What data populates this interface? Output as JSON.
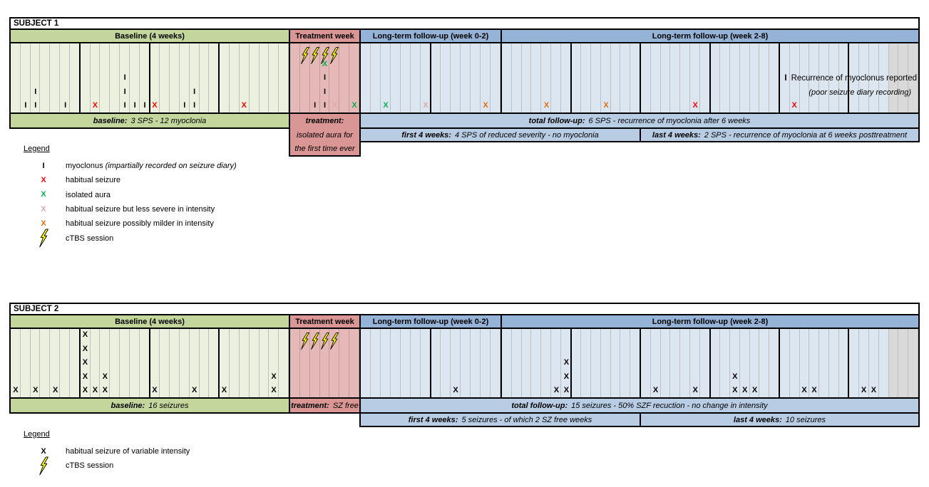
{
  "colors": {
    "baseline_header": "#C3D69B",
    "baseline_bg": "#EBF1DE",
    "treatment_header": "#D99694",
    "treatment_bg": "#E5B9B7",
    "followup_header": "#95B3D7",
    "followup_bg": "#DCE6F1",
    "summary_followup": "#B8CCE4",
    "gray_bg": "#D9D9D9",
    "mark_black": "#000000",
    "mark_red": "#FF0000",
    "mark_green": "#00B050",
    "mark_pink": "#E0A8A6",
    "mark_orange": "#E36C09",
    "bolt_fill": "#FFFF00"
  },
  "grid": {
    "week_length": 7,
    "sections": [
      {
        "key": "baseline",
        "days": 28
      },
      {
        "key": "treatment",
        "days": 7
      },
      {
        "key": "ltf1",
        "days": 14
      },
      {
        "key": "ltf2",
        "days": 42,
        "gray_last_days": 3
      }
    ]
  },
  "subjects": [
    {
      "title": "SUBJECT 1",
      "headers": {
        "baseline": "Baseline (4 weeks)",
        "treatment": "Treatment week",
        "ltf1": "Long-term follow-up (week 0-2)",
        "ltf2": "Long-term follow-up (week 2-8)"
      },
      "bolts": [
        2,
        3,
        4,
        5
      ],
      "marks": [
        {
          "sec": "baseline",
          "day": 2,
          "level": 0,
          "sym": "I",
          "color": "black"
        },
        {
          "sec": "baseline",
          "day": 3,
          "level": 0,
          "sym": "I",
          "color": "black"
        },
        {
          "sec": "baseline",
          "day": 3,
          "level": 1,
          "sym": "I",
          "color": "black"
        },
        {
          "sec": "baseline",
          "day": 6,
          "level": 0,
          "sym": "I",
          "color": "black"
        },
        {
          "sec": "baseline",
          "day": 9,
          "level": 0,
          "sym": "X",
          "color": "red"
        },
        {
          "sec": "baseline",
          "day": 12,
          "level": 0,
          "sym": "I",
          "color": "black"
        },
        {
          "sec": "baseline",
          "day": 12,
          "level": 1,
          "sym": "I",
          "color": "black"
        },
        {
          "sec": "baseline",
          "day": 12,
          "level": 2,
          "sym": "I",
          "color": "black"
        },
        {
          "sec": "baseline",
          "day": 13,
          "level": 0,
          "sym": "I",
          "color": "black"
        },
        {
          "sec": "baseline",
          "day": 14,
          "level": 0,
          "sym": "I",
          "color": "black"
        },
        {
          "sec": "baseline",
          "day": 15,
          "level": 0,
          "sym": "X",
          "color": "red"
        },
        {
          "sec": "baseline",
          "day": 18,
          "level": 0,
          "sym": "I",
          "color": "black"
        },
        {
          "sec": "baseline",
          "day": 19,
          "level": 0,
          "sym": "I",
          "color": "black"
        },
        {
          "sec": "baseline",
          "day": 19,
          "level": 1,
          "sym": "I",
          "color": "black"
        },
        {
          "sec": "baseline",
          "day": 24,
          "level": 0,
          "sym": "X",
          "color": "red"
        },
        {
          "sec": "treatment",
          "day": 3,
          "level": 0,
          "sym": "I",
          "color": "black"
        },
        {
          "sec": "treatment",
          "day": 4,
          "level": 0,
          "sym": "I",
          "color": "black"
        },
        {
          "sec": "treatment",
          "day": 4,
          "level": 1,
          "sym": "I",
          "color": "black"
        },
        {
          "sec": "treatment",
          "day": 4,
          "level": 2,
          "sym": "I",
          "color": "black"
        },
        {
          "sec": "treatment",
          "day": 4,
          "level": 3,
          "sym": "X",
          "color": "green"
        },
        {
          "sec": "treatment",
          "day": 5,
          "level": 0,
          "sym": "X",
          "color": "pink"
        },
        {
          "sec": "treatment",
          "day": 7,
          "level": 0,
          "sym": "X",
          "color": "green"
        },
        {
          "sec": "ltf1",
          "day": 3,
          "level": 0,
          "sym": "X",
          "color": "green"
        },
        {
          "sec": "ltf1",
          "day": 7,
          "level": 0,
          "sym": "X",
          "color": "pink"
        },
        {
          "sec": "ltf1",
          "day": 13,
          "level": 0,
          "sym": "X",
          "color": "orange"
        },
        {
          "sec": "ltf2",
          "day": 5,
          "level": 0,
          "sym": "X",
          "color": "orange"
        },
        {
          "sec": "ltf2",
          "day": 11,
          "level": 0,
          "sym": "X",
          "color": "orange"
        },
        {
          "sec": "ltf2",
          "day": 20,
          "level": 0,
          "sym": "X",
          "color": "red"
        },
        {
          "sec": "ltf2",
          "day": 30,
          "level": 0,
          "sym": "X",
          "color": "red"
        }
      ],
      "annotation": {
        "mark": "I",
        "line1": "Recurrence of myoclonus reported",
        "line2": "(poor seizure diary recording)"
      },
      "summary": {
        "baseline_label": "baseline:",
        "baseline_value": "3 SPS - 12 myoclonia",
        "treatment_label": "treatment:",
        "treatment_line2": "isolated aura for",
        "treatment_line3": "the first time ever",
        "total_label": "total follow-up:",
        "total_value": "6 SPS - recurrence of myoclonia after 6 weeks",
        "first4_label": "first 4 weeks:",
        "first4_value": "4 SPS of reduced severity - no myoclonia",
        "last4_label": "last 4 weeks:",
        "last4_value": "2 SPS - recurrence of myoclonia at 6 weeks posttreatment"
      },
      "legend": {
        "title": "Legend",
        "items": [
          {
            "sym": "I",
            "color": "black",
            "text": "myoclonus",
            "note": "(impartially recorded on seizure diary)"
          },
          {
            "sym": "X",
            "color": "red",
            "text": "habitual seizure"
          },
          {
            "sym": "X",
            "color": "green",
            "text": "isolated aura"
          },
          {
            "sym": "X",
            "color": "pink",
            "text": "habitual seizure but less severe in intensity"
          },
          {
            "sym": "X",
            "color": "orange",
            "text": "habitual seizure possibly milder in intensity"
          },
          {
            "sym": "bolt",
            "text": "cTBS session"
          }
        ]
      }
    },
    {
      "title": "SUBJECT 2",
      "headers": {
        "baseline": "Baseline (4 weeks)",
        "treatment": "Treatment week",
        "ltf1": "Long-term follow-up (week 0-2)",
        "ltf2": "Long-term follow-up (week 2-8)"
      },
      "bolts": [
        2,
        3,
        4,
        5
      ],
      "marks": [
        {
          "sec": "baseline",
          "day": 1,
          "level": 0,
          "sym": "X",
          "color": "black"
        },
        {
          "sec": "baseline",
          "day": 3,
          "level": 0,
          "sym": "X",
          "color": "black"
        },
        {
          "sec": "baseline",
          "day": 5,
          "level": 0,
          "sym": "X",
          "color": "black"
        },
        {
          "sec": "baseline",
          "day": 8,
          "level": 0,
          "sym": "X",
          "color": "black"
        },
        {
          "sec": "baseline",
          "day": 8,
          "level": 1,
          "sym": "X",
          "color": "black"
        },
        {
          "sec": "baseline",
          "day": 8,
          "level": 2,
          "sym": "X",
          "color": "black"
        },
        {
          "sec": "baseline",
          "day": 8,
          "level": 3,
          "sym": "X",
          "color": "black"
        },
        {
          "sec": "baseline",
          "day": 8,
          "level": 4,
          "sym": "X",
          "color": "black"
        },
        {
          "sec": "baseline",
          "day": 9,
          "level": 0,
          "sym": "X",
          "color": "black"
        },
        {
          "sec": "baseline",
          "day": 10,
          "level": 0,
          "sym": "X",
          "color": "black"
        },
        {
          "sec": "baseline",
          "day": 10,
          "level": 1,
          "sym": "X",
          "color": "black"
        },
        {
          "sec": "baseline",
          "day": 15,
          "level": 0,
          "sym": "X",
          "color": "black"
        },
        {
          "sec": "baseline",
          "day": 19,
          "level": 0,
          "sym": "X",
          "color": "black"
        },
        {
          "sec": "baseline",
          "day": 22,
          "level": 0,
          "sym": "X",
          "color": "black"
        },
        {
          "sec": "baseline",
          "day": 27,
          "level": 0,
          "sym": "X",
          "color": "black"
        },
        {
          "sec": "baseline",
          "day": 27,
          "level": 1,
          "sym": "X",
          "color": "black"
        },
        {
          "sec": "ltf1",
          "day": 10,
          "level": 0,
          "sym": "X",
          "color": "black"
        },
        {
          "sec": "ltf2",
          "day": 6,
          "level": 0,
          "sym": "X",
          "color": "black"
        },
        {
          "sec": "ltf2",
          "day": 7,
          "level": 0,
          "sym": "X",
          "color": "black"
        },
        {
          "sec": "ltf2",
          "day": 7,
          "level": 1,
          "sym": "X",
          "color": "black"
        },
        {
          "sec": "ltf2",
          "day": 7,
          "level": 2,
          "sym": "X",
          "color": "black"
        },
        {
          "sec": "ltf2",
          "day": 16,
          "level": 0,
          "sym": "X",
          "color": "black"
        },
        {
          "sec": "ltf2",
          "day": 20,
          "level": 0,
          "sym": "X",
          "color": "black"
        },
        {
          "sec": "ltf2",
          "day": 24,
          "level": 0,
          "sym": "X",
          "color": "black"
        },
        {
          "sec": "ltf2",
          "day": 24,
          "level": 1,
          "sym": "X",
          "color": "black"
        },
        {
          "sec": "ltf2",
          "day": 25,
          "level": 0,
          "sym": "X",
          "color": "black"
        },
        {
          "sec": "ltf2",
          "day": 26,
          "level": 0,
          "sym": "X",
          "color": "black"
        },
        {
          "sec": "ltf2",
          "day": 31,
          "level": 0,
          "sym": "X",
          "color": "black"
        },
        {
          "sec": "ltf2",
          "day": 32,
          "level": 0,
          "sym": "X",
          "color": "black"
        },
        {
          "sec": "ltf2",
          "day": 37,
          "level": 0,
          "sym": "X",
          "color": "black"
        },
        {
          "sec": "ltf2",
          "day": 38,
          "level": 0,
          "sym": "X",
          "color": "black"
        }
      ],
      "summary": {
        "baseline_label": "baseline:",
        "baseline_value": "16 seizures",
        "treatment_label": "treatment:",
        "treatment_value": "SZ free",
        "total_label": "total follow-up:",
        "total_value": "15 seizures - 50% SZF recuction - no change in intensity",
        "first4_label": "first 4 weeks:",
        "first4_value": "5 seizures - of which 2 SZ free weeks",
        "last4_label": "last 4 weeks:",
        "last4_value": "10 seizures"
      },
      "legend": {
        "title": "Legend",
        "items": [
          {
            "sym": "X",
            "color": "black",
            "text": "habitual seizure of variable intensity"
          },
          {
            "sym": "bolt",
            "text": "cTBS session"
          }
        ]
      }
    }
  ]
}
